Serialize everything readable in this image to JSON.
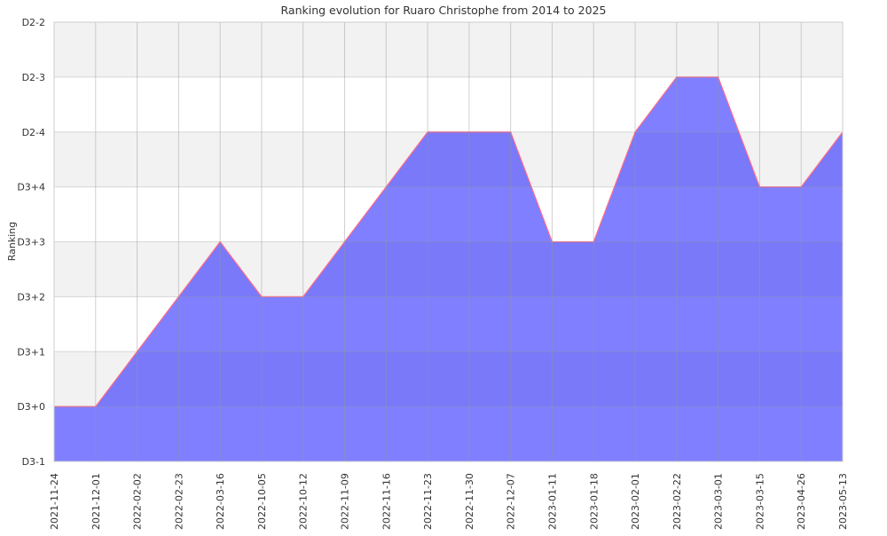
{
  "chart_data": {
    "type": "area",
    "title": "Ranking evolution for Ruaro Christophe from 2014 to 2025",
    "xlabel": "",
    "ylabel": "Ranking",
    "y_tick_labels": [
      "D3-1",
      "D3+0",
      "D3+1",
      "D3+2",
      "D3+3",
      "D3+4",
      "D2-4",
      "D2-3",
      "D2-2"
    ],
    "categories": [
      "2021-11-24",
      "2021-12-01",
      "2022-02-02",
      "2022-02-23",
      "2022-03-16",
      "2022-10-05",
      "2022-10-12",
      "2022-11-09",
      "2022-11-16",
      "2022-11-23",
      "2022-11-30",
      "2022-12-07",
      "2023-01-11",
      "2023-01-18",
      "2023-02-01",
      "2023-02-22",
      "2023-03-01",
      "2023-03-15",
      "2023-04-26",
      "2023-05-13"
    ],
    "series": [
      {
        "name": "Ranking",
        "values": [
          "D3+0",
          "D3+0",
          "D3+1",
          "D3+2",
          "D3+3",
          "D3+2",
          "D3+2",
          "D3+3",
          "D3+4",
          "D2-4",
          "D2-4",
          "D2-4",
          "D3+3",
          "D3+3",
          "D2-4",
          "D2-3",
          "D2-3",
          "D3+4",
          "D3+4",
          "D2-4"
        ]
      }
    ],
    "grid": true,
    "colors": {
      "fill": "#0000ff",
      "line": "#ff6b8a",
      "band": "#f2f2f2",
      "grid": "#cccccc"
    }
  }
}
